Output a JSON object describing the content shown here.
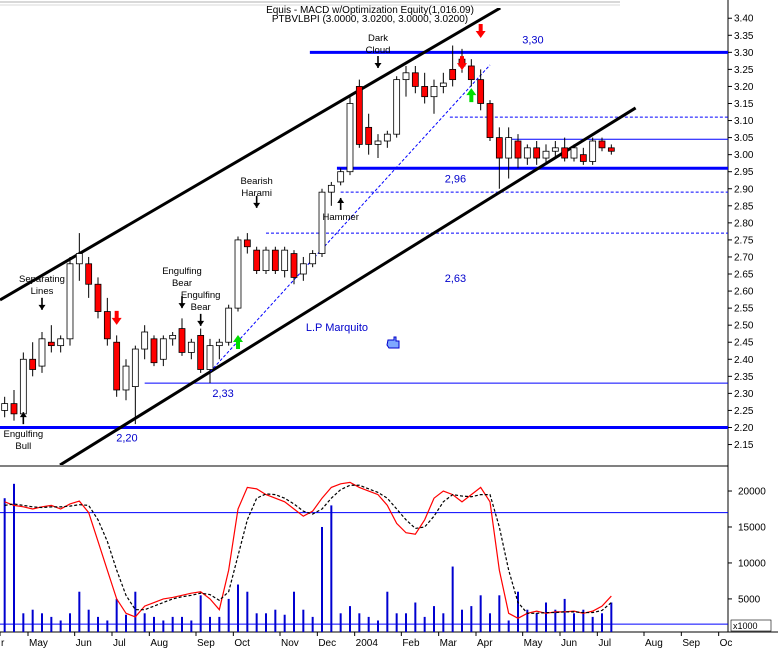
{
  "chart_data": {
    "type": "candlestick",
    "title": "Equis - MACD  w/Optimization Equity(1,016.09)",
    "subtitle": "PTBVLBPI (3.0000, 3.0200, 3.0000, 3.0200)",
    "categories": [
      "r",
      null,
      null,
      "May",
      null,
      null,
      null,
      null,
      "Jun",
      null,
      null,
      null,
      "Jul",
      null,
      null,
      null,
      "Aug",
      null,
      null,
      null,
      null,
      "Sep",
      null,
      null,
      null,
      "Oct",
      null,
      null,
      null,
      null,
      "Nov",
      null,
      null,
      null,
      "Dec",
      null,
      null,
      null,
      "2004",
      null,
      null,
      null,
      null,
      "Feb",
      null,
      null,
      null,
      "Mar",
      null,
      null,
      null,
      "Apr",
      null,
      null,
      null,
      null,
      "May",
      null,
      null,
      null,
      "Jun",
      null,
      null,
      null,
      "Jul",
      null,
      null,
      null,
      null,
      "Aug",
      null,
      null,
      null,
      "Sep",
      null,
      null,
      null,
      "Oc"
    ],
    "open": [
      2.25,
      2.27,
      2.24,
      2.4,
      2.38,
      2.45,
      2.44,
      2.46,
      2.68,
      2.68,
      2.62,
      2.54,
      2.45,
      2.31,
      2.32,
      2.43,
      2.46,
      2.4,
      2.46,
      2.49,
      2.42,
      2.47,
      2.37,
      2.44,
      2.45,
      2.55,
      2.75,
      2.72,
      2.66,
      2.72,
      2.66,
      2.71,
      2.65,
      2.68,
      2.71,
      2.89,
      2.92,
      2.95,
      3.2,
      3.08,
      3.03,
      3.04,
      3.06,
      3.22,
      3.24,
      3.2,
      3.17,
      3.2,
      3.25,
      3.28,
      3.26,
      3.22,
      3.15,
      3.05,
      2.99,
      3.04,
      2.99,
      3.02,
      2.99,
      3.01,
      3.02,
      2.99,
      3.0,
      2.98,
      3.04,
      3.02,
      null,
      null,
      null,
      null,
      null,
      null,
      null,
      null,
      null,
      null,
      null,
      null
    ],
    "high": [
      2.29,
      2.31,
      2.42,
      2.45,
      2.48,
      2.5,
      2.47,
      2.7,
      2.77,
      2.7,
      2.64,
      2.58,
      2.47,
      2.4,
      2.44,
      2.5,
      2.47,
      2.47,
      2.48,
      2.52,
      2.46,
      2.49,
      2.46,
      2.46,
      2.56,
      2.76,
      2.77,
      2.73,
      2.73,
      2.73,
      2.73,
      2.72,
      2.7,
      2.72,
      2.9,
      2.92,
      2.96,
      3.17,
      3.22,
      3.12,
      3.06,
      3.07,
      3.23,
      3.26,
      3.26,
      3.24,
      3.22,
      3.24,
      3.32,
      3.31,
      3.28,
      3.25,
      3.16,
      3.08,
      3.08,
      3.06,
      3.03,
      3.04,
      3.03,
      3.04,
      3.05,
      3.03,
      3.02,
      3.05,
      3.05,
      3.03,
      null,
      null,
      null,
      null,
      null,
      null,
      null,
      null,
      null,
      null,
      null,
      null
    ],
    "low": [
      2.23,
      2.22,
      2.22,
      2.35,
      2.36,
      2.42,
      2.42,
      2.44,
      2.63,
      2.58,
      2.52,
      2.44,
      2.29,
      2.28,
      2.21,
      2.4,
      2.38,
      2.38,
      2.44,
      2.41,
      2.4,
      2.36,
      2.33,
      2.4,
      2.44,
      2.54,
      2.71,
      2.65,
      2.65,
      2.65,
      2.64,
      2.62,
      2.63,
      2.67,
      2.7,
      2.85,
      2.91,
      2.94,
      3.02,
      3.0,
      2.99,
      3.02,
      3.05,
      3.17,
      3.18,
      3.15,
      3.12,
      3.18,
      3.2,
      3.24,
      3.2,
      3.13,
      3.04,
      2.9,
      2.93,
      2.96,
      2.97,
      2.97,
      2.97,
      2.99,
      2.98,
      2.98,
      2.97,
      2.97,
      3.01,
      3.0,
      null,
      null,
      null,
      null,
      null,
      null,
      null,
      null,
      null,
      null,
      null,
      null
    ],
    "close": [
      2.27,
      2.24,
      2.4,
      2.37,
      2.46,
      2.44,
      2.46,
      2.68,
      2.71,
      2.62,
      2.54,
      2.46,
      2.31,
      2.38,
      2.43,
      2.48,
      2.39,
      2.46,
      2.47,
      2.42,
      2.45,
      2.37,
      2.44,
      2.45,
      2.55,
      2.75,
      2.73,
      2.66,
      2.72,
      2.66,
      2.72,
      2.64,
      2.68,
      2.71,
      2.89,
      2.91,
      2.95,
      3.15,
      3.03,
      3.03,
      3.04,
      3.06,
      3.22,
      3.24,
      3.2,
      3.17,
      3.2,
      3.21,
      3.22,
      3.26,
      3.22,
      3.15,
      3.05,
      2.99,
      3.05,
      2.99,
      3.02,
      2.99,
      3.01,
      3.02,
      2.99,
      3.02,
      2.98,
      3.04,
      3.02,
      3.01,
      null,
      null,
      null,
      null,
      null,
      null,
      null,
      null,
      null,
      null,
      null,
      null
    ],
    "up_color": "#ffffff",
    "down_color": "#ff0000",
    "ylim": [
      2.09,
      3.43
    ],
    "yticks": [
      2.15,
      {
        "value": 2.2,
        "label": "2.20"
      },
      2.25,
      {
        "value": 2.3,
        "label": "2.30"
      },
      2.35,
      {
        "value": 2.4,
        "label": "2.40"
      },
      2.45,
      {
        "value": 2.5,
        "label": "2.50"
      },
      2.55,
      {
        "value": 2.6,
        "label": "2.60"
      },
      2.65,
      {
        "value": 2.7,
        "label": "2.70"
      },
      2.75,
      {
        "value": 2.8,
        "label": "2.80"
      },
      2.85,
      {
        "value": 2.9,
        "label": "2.90"
      },
      2.95,
      {
        "value": 3.0,
        "label": "3.00"
      },
      3.05,
      {
        "value": 3.1,
        "label": "3.10"
      },
      3.15,
      {
        "value": 3.2,
        "label": "3.20"
      },
      3.25,
      {
        "value": 3.3,
        "label": "3.30"
      },
      3.35,
      {
        "value": 3.4,
        "label": "3.40"
      }
    ],
    "levels": [
      {
        "value": 3.3,
        "start": 32.7,
        "style": "thick",
        "label": "3,30",
        "label_at": 56.6,
        "label_side": "above"
      },
      {
        "value": 2.96,
        "start": 35.6,
        "style": "thick",
        "label": "2,96",
        "label_at": 48.3,
        "label_side": "below"
      },
      {
        "value": 2.2,
        "start": -0.5,
        "style": "thick",
        "label": "2,20",
        "label_at": 13.1,
        "label_side": "below"
      },
      {
        "value": 2.33,
        "start": 15,
        "style": "thin",
        "label": "2,33",
        "label_at": 23.4,
        "label_side": "below"
      },
      {
        "value": 3.045,
        "start": 53.6,
        "style": "thin"
      },
      {
        "value": 3.11,
        "start": 47.7,
        "style": "dashed"
      },
      {
        "value": 2.89,
        "start": 36,
        "style": "dashed"
      },
      {
        "value": 2.77,
        "start": 28,
        "style": "dashed"
      }
    ],
    "trendlines": [
      {
        "points": [
          [
            -0.5,
            2.574
          ],
          [
            53.1,
            3.43
          ]
        ],
        "color": "#000000",
        "style": "thick"
      },
      {
        "points": [
          [
            5.93,
            2.09
          ],
          [
            67.6,
            3.137
          ]
        ],
        "color": "#000000",
        "style": "thick"
      },
      {
        "points": [
          [
            22,
            2.363
          ],
          [
            52,
            3.263
          ]
        ],
        "color": "#0000ff",
        "style": "dashed"
      }
    ],
    "annotations": [
      {
        "lines": [
          "Engulfing",
          "Bull"
        ],
        "at": 2,
        "price": 2.184,
        "arrow": {
          "price": 2.245,
          "dir": "up"
        }
      },
      {
        "lines": [
          "Separating",
          "Lines"
        ],
        "at": 4,
        "price": 2.638,
        "arrow": {
          "price": 2.545,
          "dir": "down"
        }
      },
      {
        "lines": [
          "Engulfing",
          "Bear"
        ],
        "at": 19,
        "price": 2.662,
        "arrow": {
          "price": 2.55,
          "dir": "down"
        }
      },
      {
        "lines": [
          "Engulfing",
          "Bear"
        ],
        "at": 21,
        "price": 2.591,
        "arrow": {
          "price": 2.498,
          "dir": "down"
        }
      },
      {
        "lines": [
          "Bearish",
          "Harami"
        ],
        "at": 27,
        "price": 2.926,
        "arrow": {
          "price": 2.844,
          "dir": "down"
        }
      },
      {
        "lines": [
          "Hammer"
        ],
        "at": 36,
        "price": 2.82,
        "arrow": {
          "price": 2.873,
          "dir": "up"
        }
      },
      {
        "lines": [
          "Dark",
          "Cloud"
        ],
        "at": 40,
        "price": 3.345,
        "arrow": {
          "price": 3.254,
          "dir": "down"
        }
      }
    ],
    "signals": [
      {
        "at": 25,
        "price": 2.471,
        "dir": "up",
        "color": "#00dd00"
      },
      {
        "at": 50,
        "price": 3.195,
        "dir": "up",
        "color": "#00dd00"
      },
      {
        "at": 12,
        "price": 2.501,
        "dir": "down",
        "color": "#ff0000"
      },
      {
        "at": 49,
        "price": 3.248,
        "dir": "down",
        "color": "#ff0000"
      },
      {
        "at": 51,
        "price": 3.342,
        "dir": "down",
        "color": "#ff0000"
      }
    ],
    "notes": [
      {
        "text": "2,63",
        "at": 48.3,
        "price": 2.638
      },
      {
        "text": "L.P Marquito",
        "at": 35.6,
        "price": 2.495
      }
    ],
    "lower_panel": {
      "ylim": [
        400,
        23200
      ],
      "yticks": [
        5000,
        10000,
        15000,
        20000
      ],
      "unit_label": "x1000",
      "reference_lines": [
        17000,
        1500
      ],
      "reference_color": "#0000ff",
      "volume": {
        "color": "#0000d0",
        "values": [
          19000,
          21000,
          3000,
          3500,
          3000,
          2500,
          2000,
          3000,
          6000,
          3500,
          2500,
          2000,
          5000,
          2800,
          6000,
          3000,
          2500,
          2000,
          2500,
          2500,
          2000,
          5500,
          2500,
          2500,
          5000,
          7000,
          6000,
          3000,
          3000,
          3500,
          2800,
          6000,
          3500,
          2500,
          15000,
          18000,
          3000,
          4000,
          3000,
          2500,
          2000,
          6000,
          3000,
          3000,
          4500,
          2500,
          4000,
          3000,
          9500,
          3500,
          4000,
          5500,
          3000,
          5500,
          2000,
          6000,
          3500,
          3000,
          4500,
          3500,
          5000,
          3000,
          3500,
          2500,
          3000,
          4500,
          null,
          null,
          null,
          null,
          null,
          null,
          null,
          null,
          null,
          null,
          null,
          null
        ]
      },
      "series": [
        {
          "color": "#ff0000",
          "dashed": false,
          "values": [
            18500,
            18000,
            17800,
            17500,
            17800,
            18000,
            17500,
            18200,
            18600,
            17000,
            13000,
            9000,
            5000,
            3000,
            2500,
            4000,
            4500,
            5000,
            5200,
            5500,
            5800,
            6000,
            5000,
            3500,
            9000,
            17500,
            20500,
            20300,
            19500,
            19000,
            18500,
            17500,
            16500,
            17200,
            19000,
            20500,
            21000,
            21200,
            20500,
            20000,
            19500,
            18000,
            15500,
            14200,
            14000,
            16000,
            19000,
            20000,
            19500,
            18500,
            19500,
            20500,
            18500,
            9000,
            3000,
            2300,
            3000,
            3300,
            3000,
            3200,
            3200,
            3300,
            3000,
            3300,
            4000,
            5400,
            null,
            null,
            null,
            null,
            null,
            null,
            null,
            null,
            null,
            null,
            null,
            null
          ]
        },
        {
          "color": "#000000",
          "dashed": true,
          "values": [
            18000,
            18200,
            18000,
            17800,
            17700,
            17800,
            17800,
            17900,
            18100,
            18000,
            16000,
            13000,
            9000,
            5500,
            3500,
            3500,
            4000,
            4500,
            5000,
            5300,
            5500,
            5800,
            5600,
            4800,
            6000,
            11000,
            16000,
            19000,
            19600,
            19500,
            19000,
            18200,
            17200,
            16800,
            17500,
            19000,
            20200,
            20800,
            20800,
            20300,
            19800,
            19000,
            17500,
            16000,
            14800,
            15000,
            16500,
            18500,
            19500,
            19300,
            19200,
            19500,
            19500,
            15000,
            9000,
            4500,
            3000,
            3000,
            3100,
            3100,
            3200,
            3200,
            3100,
            3100,
            3400,
            4500,
            null,
            null,
            null,
            null,
            null,
            null,
            null,
            null,
            null,
            null,
            null,
            null
          ]
        }
      ]
    }
  }
}
